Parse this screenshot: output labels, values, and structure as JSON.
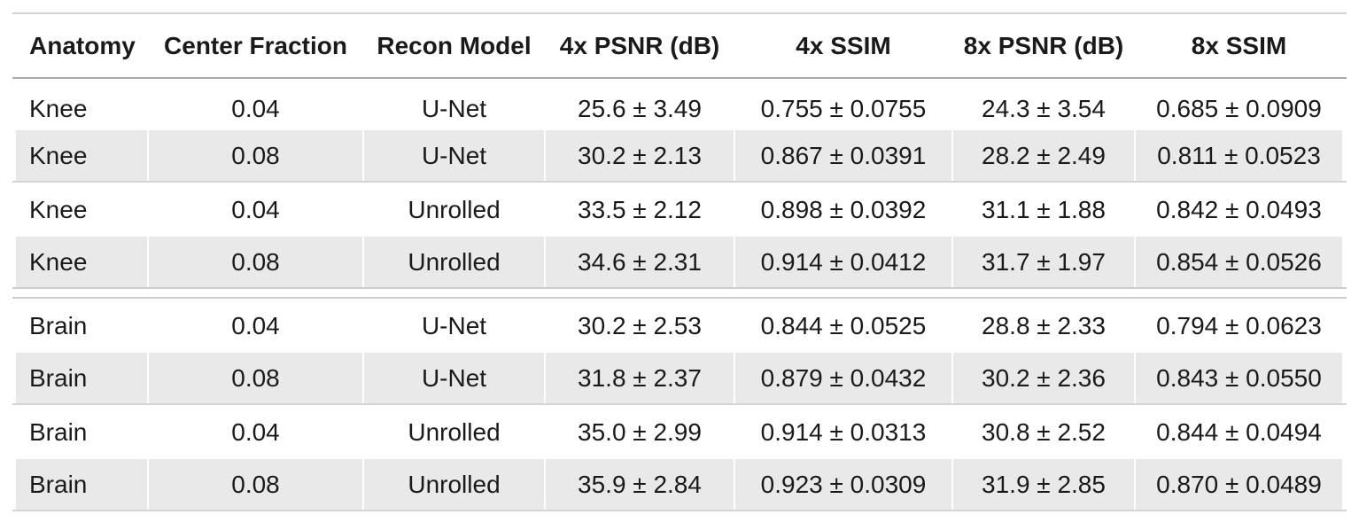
{
  "chart_data": {
    "type": "table",
    "columns": [
      "Anatomy",
      "Center Fraction",
      "Recon Model",
      "4x PSNR (dB)",
      "4x SSIM",
      "8x PSNR (dB)",
      "8x SSIM"
    ],
    "rows": [
      [
        "Knee",
        "0.04",
        "U-Net",
        "25.6 ± 3.49",
        "0.755 ± 0.0755",
        "24.3 ± 3.54",
        "0.685 ± 0.0909"
      ],
      [
        "Knee",
        "0.08",
        "U-Net",
        "30.2 ± 2.13",
        "0.867 ± 0.0391",
        "28.2 ± 2.49",
        "0.811 ± 0.0523"
      ],
      [
        "Knee",
        "0.04",
        "Unrolled",
        "33.5 ± 2.12",
        "0.898 ± 0.0392",
        "31.1 ± 1.88",
        "0.842 ± 0.0493"
      ],
      [
        "Knee",
        "0.08",
        "Unrolled",
        "34.6 ± 2.31",
        "0.914 ± 0.0412",
        "31.7 ± 1.97",
        "0.854 ± 0.0526"
      ],
      [
        "Brain",
        "0.04",
        "U-Net",
        "30.2 ± 2.53",
        "0.844 ± 0.0525",
        "28.8 ± 2.33",
        "0.794 ± 0.0623"
      ],
      [
        "Brain",
        "0.08",
        "U-Net",
        "31.8 ± 2.37",
        "0.879 ± 0.0432",
        "30.2 ± 2.36",
        "0.843 ± 0.0550"
      ],
      [
        "Brain",
        "0.04",
        "Unrolled",
        "35.0 ± 2.99",
        "0.914 ± 0.0313",
        "30.8 ± 2.52",
        "0.844 ± 0.0494"
      ],
      [
        "Brain",
        "0.08",
        "Unrolled",
        "35.9 ± 2.84",
        "0.923 ± 0.0309",
        "31.9 ± 2.85",
        "0.870 ± 0.0489"
      ]
    ],
    "title": "",
    "layout_hints": {
      "striped_rows": [
        2,
        4,
        6,
        8
      ],
      "group_separators_after_rows": [
        2,
        6,
        8
      ],
      "double_separator_after_row": 4,
      "column_alignment": [
        "left",
        "center",
        "center",
        "center",
        "center",
        "center",
        "center"
      ]
    }
  },
  "colors": {
    "stripe_background": "#e9e9e9",
    "rule_light": "#d3d3d3",
    "rule_header": "#ababab",
    "rule_section": "#cccccc",
    "text": "#1a1a1a",
    "page_background": "#ffffff"
  }
}
